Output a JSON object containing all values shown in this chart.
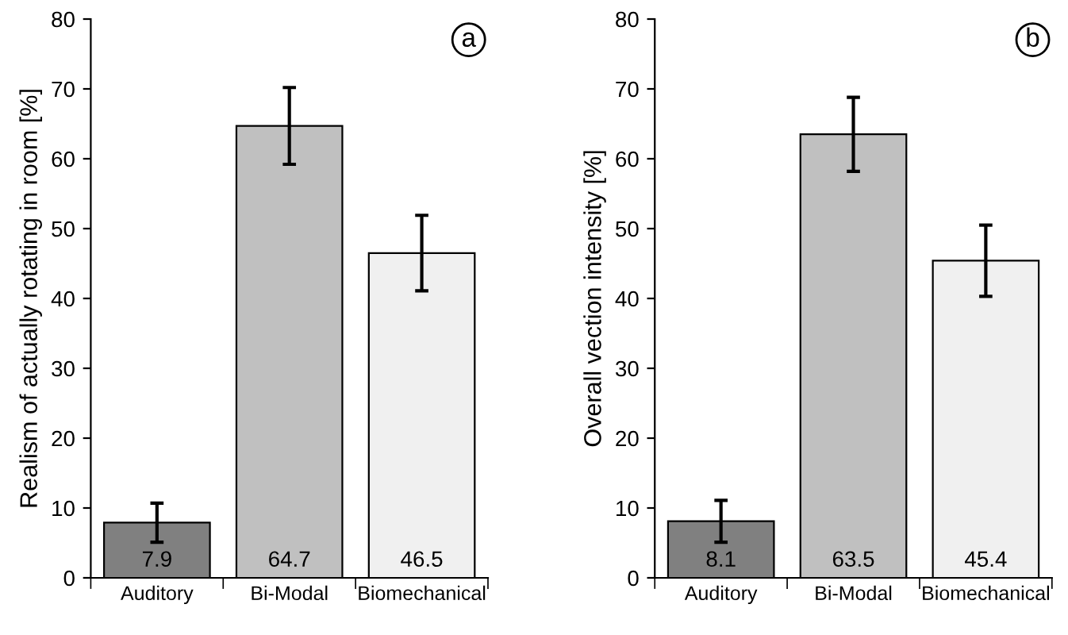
{
  "chart_data": [
    {
      "type": "bar",
      "ylabel": "Realism of actually rotating in room [%]",
      "categories": [
        "Auditory",
        "Bi-Modal",
        "Biomechanical"
      ],
      "values": [
        7.9,
        64.7,
        46.5
      ],
      "errors": [
        2.8,
        5.5,
        5.4
      ],
      "colors": [
        "#808080",
        "#c0c0c0",
        "#f0f0f0"
      ],
      "ylim": [
        0,
        80
      ],
      "yticks": [
        0,
        10,
        20,
        30,
        40,
        50,
        60,
        70,
        80
      ],
      "data_labels": true,
      "grid": false,
      "annotations": [
        "a"
      ]
    },
    {
      "type": "bar",
      "ylabel": "Overall vection intensity [%]",
      "categories": [
        "Auditory",
        "Bi-Modal",
        "Biomechanical"
      ],
      "values": [
        8.1,
        63.5,
        45.4
      ],
      "errors": [
        3.0,
        5.3,
        5.1
      ],
      "colors": [
        "#808080",
        "#c0c0c0",
        "#f0f0f0"
      ],
      "ylim": [
        0,
        80
      ],
      "yticks": [
        0,
        10,
        20,
        30,
        40,
        50,
        60,
        70,
        80
      ],
      "data_labels": true,
      "grid": false,
      "annotations": [
        "b"
      ]
    }
  ]
}
